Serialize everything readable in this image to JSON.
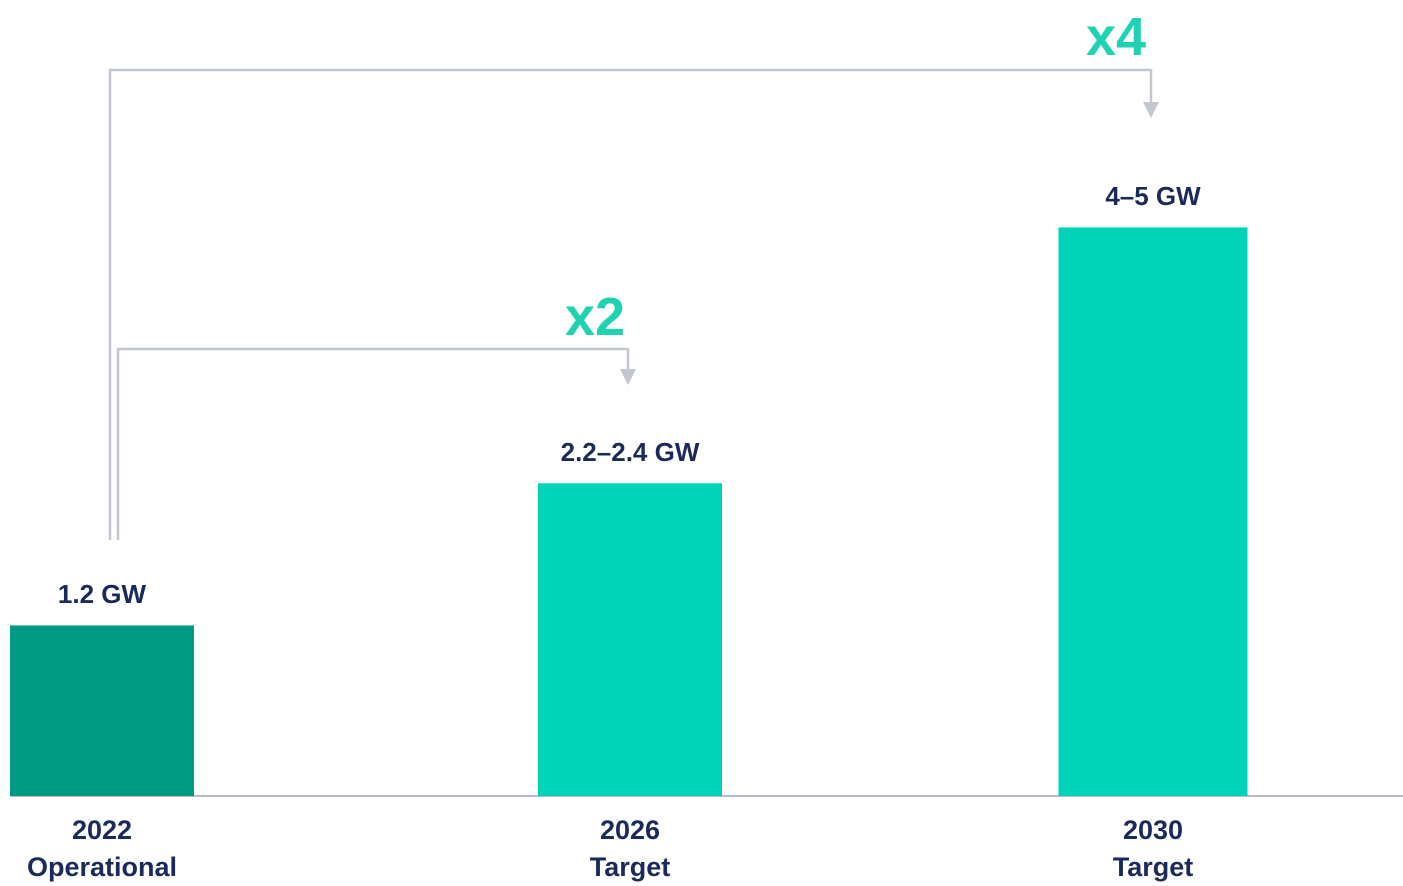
{
  "chart_data": {
    "type": "bar",
    "categories": [
      [
        "2022",
        "Operational"
      ],
      [
        "2026",
        "Target"
      ],
      [
        "2030",
        "Target"
      ]
    ],
    "values": [
      1.2,
      2.2,
      4
    ],
    "value_labels": [
      "1.2 GW",
      "2.2–2.4 GW",
      "4–5 GW"
    ],
    "colors": [
      "#009a82",
      "#00d4b8",
      "#00d4b8"
    ],
    "ylim": [
      0,
      5.6
    ],
    "annotations": [
      "x2",
      "x4"
    ]
  }
}
